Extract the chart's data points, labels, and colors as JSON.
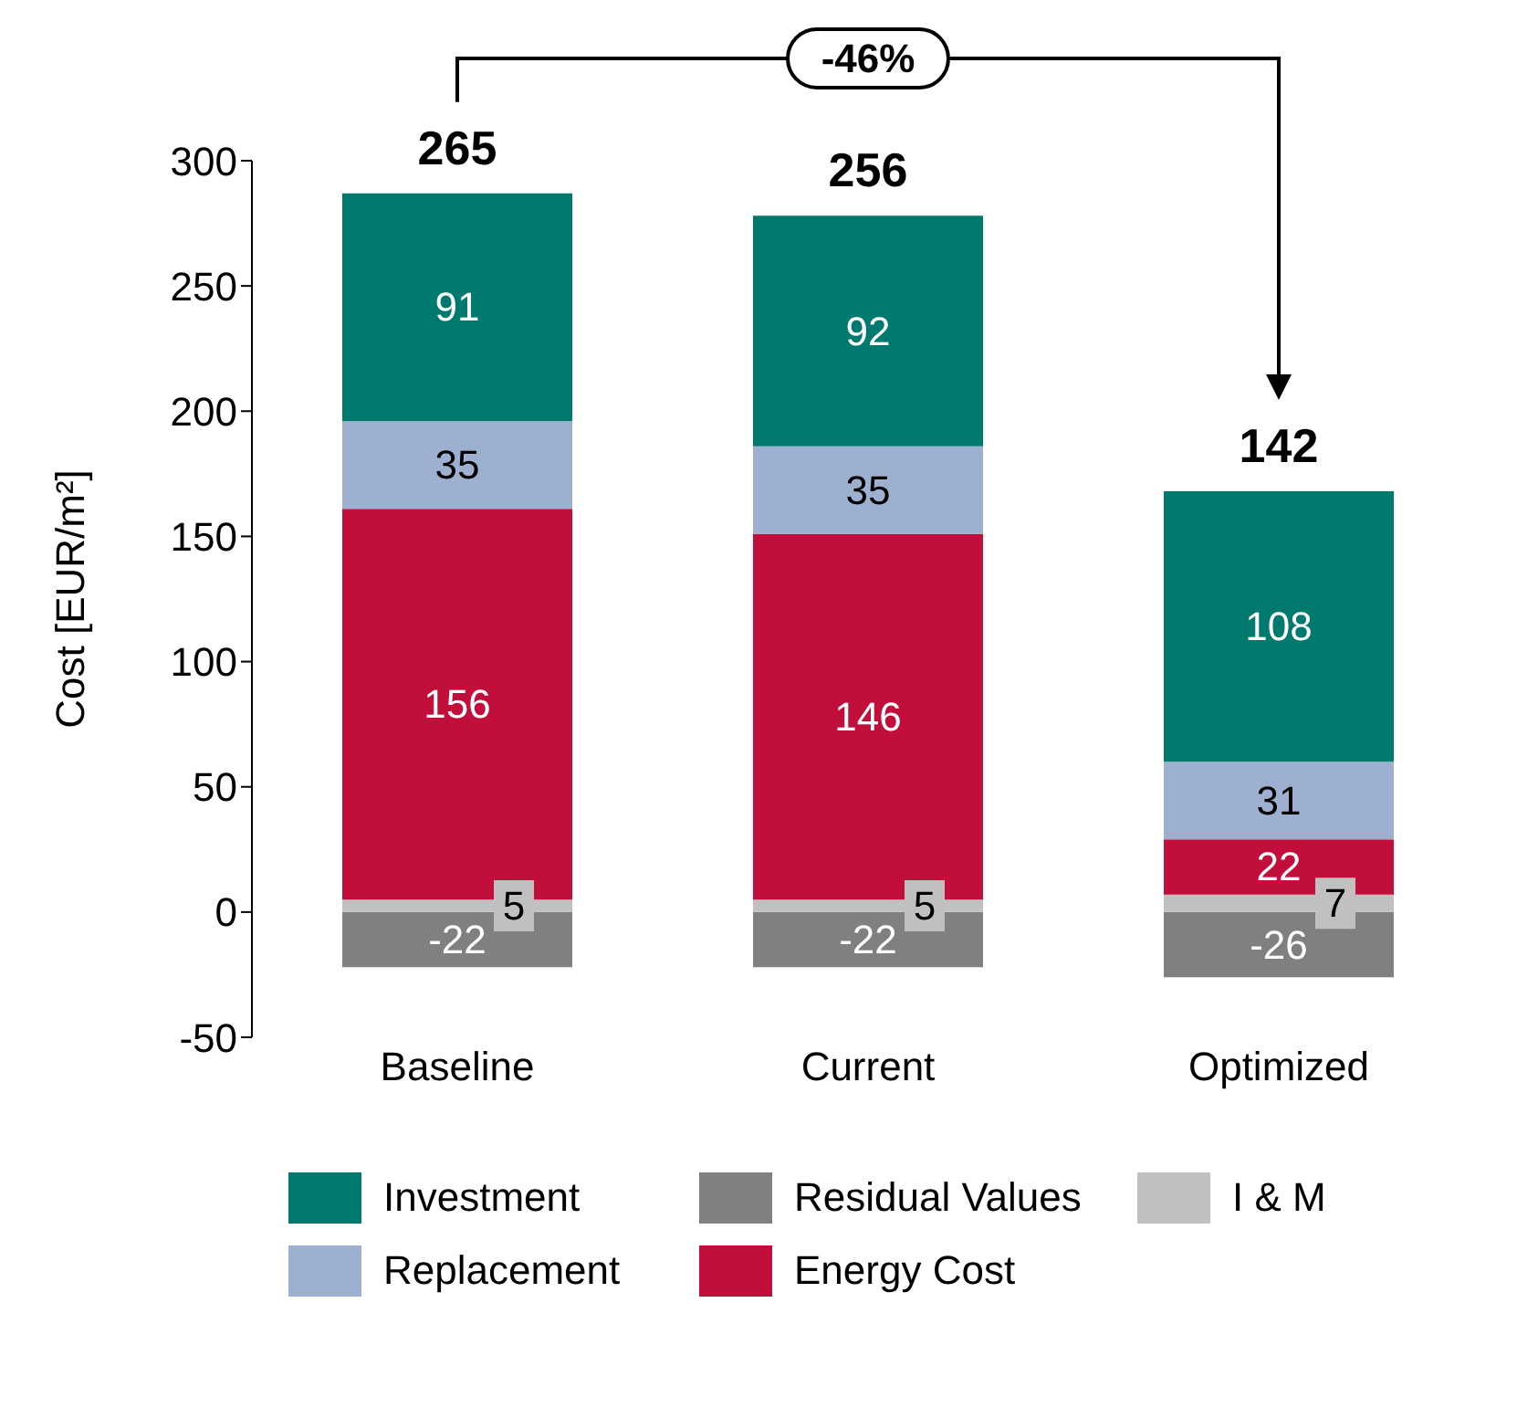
{
  "chart_data": {
    "type": "bar",
    "stacked": true,
    "ylabel": "Cost [EUR/m²]",
    "categories": [
      "Baseline",
      "Current",
      "Optimized"
    ],
    "series": [
      {
        "name": "Residual Values",
        "color": "#808080",
        "values": [
          -22,
          -22,
          -26
        ]
      },
      {
        "name": "I & M",
        "color": "#c0c0c0",
        "values": [
          5,
          5,
          7
        ]
      },
      {
        "name": "Energy Cost",
        "color": "#c20e3a",
        "values": [
          156,
          146,
          22
        ]
      },
      {
        "name": "Replacement",
        "color": "#9eb0cf",
        "values": [
          35,
          35,
          31
        ]
      },
      {
        "name": "Investment",
        "color": "#007a6e",
        "values": [
          91,
          92,
          108
        ]
      }
    ],
    "ylim": [
      -50,
      300
    ],
    "yticks": [
      -50,
      0,
      50,
      100,
      150,
      200,
      250,
      300
    ],
    "totals": [
      "265",
      "256",
      "142"
    ],
    "data_labels": true,
    "grid": false,
    "legend": "bottom",
    "annotations": [
      "-46%"
    ]
  }
}
